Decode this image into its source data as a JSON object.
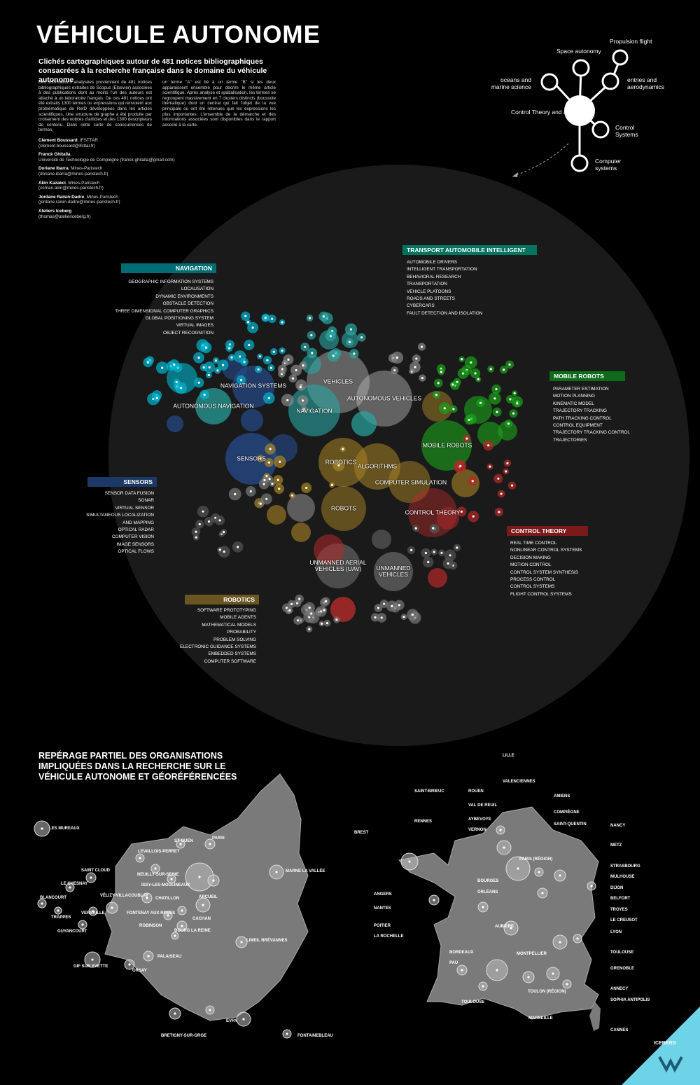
{
  "header": {
    "title": "VÉHICULE AUTONOME",
    "subtitle": "Clichés cartographiques autour de 481 notices bibliographiques consacrées à la recherche française dans le domaine du véhicule autonome",
    "intro_left": "Les informations analysées proviennent de 481 notices bibliographiques extraites de Scopus (Elsevier) associées à des publications dont au moins l'un des auteurs est attaché à un laboratoire français. De ces 481 notices ont été extraits 1300 termes ou expressions qui renvoient aux problématique de RetD développées dans les articles scientifiques. Une structure de graphe a été produite par croisement des notices d'articles et des 1300 descripteurs de contenu. Dans cette carte de cooccurrences de termes,",
    "intro_right": "un terme \"A\" est lié à un terme \"B\" si les deux apparaissent ensemble pour décrire le même article scientifique. Après analyse et spatialisation, les termes se regroupent massivement en 7 clusters distincts (boussole thématique) dont un central qui fait l'objet de la vue principale où ont été retenues que les expressions les plus importantes. L'ensemble de la démarche et des informations associées sont disponibles dans le rapport associé à la carte."
  },
  "authors": [
    {
      "name": "Clement Boussard",
      "affil": ", IFSTTAR",
      "contact": "(clement.boussard@ifsttar.fr)"
    },
    {
      "name": "Franck Ghitalla",
      "affil": ",",
      "contact": "Université de Technologie de Compiègne (franck.ghitalla@gmail.com)"
    },
    {
      "name": "Doriane Ibarra",
      "affil": ", Mines-Paristech",
      "contact": "(doriane.ibarra@mines-paristech.fr)"
    },
    {
      "name": "Akin Kazakci",
      "affil": ", Mines-Paristech",
      "contact": "(osman.akin@mines-paristech.fr)"
    },
    {
      "name": "Jordane Raisin-Dadre",
      "affil": ", Mines-Paristech",
      "contact": "(jordane.raisin-dadre@mines-paristech.fr)"
    },
    {
      "name": "Ateliers Iceberg",
      "affil": "",
      "contact": "(thomas@ateliericeberg.fr)"
    }
  ],
  "compass": {
    "center": "Control Theory and applications",
    "branches": [
      "Space autonomy",
      "Propulsion flight",
      "oceans and marine science",
      "entries and aerodynamics",
      "Control Systems",
      "Computer systems"
    ]
  },
  "clusters": {
    "navigation": {
      "name": "NAVIGATION",
      "color": "#006d75",
      "terms": [
        "GEOGRAPHIC INFORMATION SYSTEMS",
        "LOCALISATION",
        "DYNAMIC ENVIRONMENTS",
        "OBSTACLE DETECTION",
        "THREE DIMENSIONAL COMPUTER GRAPHICS",
        "GLOBAL POSITIONING SYSTEM",
        "VIRTUAL IMAGES",
        "OBJECT RECOGNITION"
      ]
    },
    "transport": {
      "name": "TRANSPORT AUTOMOBILE INTELLIGENT",
      "color": "#00745e",
      "terms": [
        "AUTOMOBILE DRIVERS",
        "INTELLIGENT TRANSPORTATION",
        "BEHAVIORAL RESEARCH",
        "TRANSPORTATION",
        "VEHICLE PLATOONS",
        "ROADS AND STREETS",
        "CYBERCARS",
        "FAULT DETECTION AND ISOLATION"
      ]
    },
    "mobile": {
      "name": "MOBILE ROBOTS",
      "color": "#0d6b1a",
      "terms": [
        "PARAMETER ESTIMATION",
        "MOTION PLANNING",
        "KINEMATIC MODEL",
        "TRAJECTORY TRACKING",
        "PATH TRACKING CONTROL",
        "CONTROL EQUIPMENT",
        "TRAJECTORY TRACKING CONTROL",
        "TRAJECTORIES"
      ]
    },
    "sensors": {
      "name": "SENSORS",
      "color": "#1c3866",
      "terms": [
        "SENSOR DATA FUSION",
        "SONAR",
        "VIRTUAL SENSOR",
        "SIMULTANEOUS LOCALIZATION",
        "AND MAPPING",
        "OPTICAL RADAR",
        "COMPUTER VISION",
        "IMAGE SENSORS",
        "OPTICAL FLOWS"
      ]
    },
    "control": {
      "name": "CONTROL THEORY",
      "color": "#7a1a1a",
      "terms": [
        "REAL TIME CONTROL",
        "NONLINEAR CONTROL SYSTEMS",
        "DECISION MAKING",
        "MOTION CONTROL",
        "CONTROL SYSTEM SYNTHESIS",
        "PROCESS CONTROL",
        "CONTROL SYSTEMS",
        "FLIGHT CONTROL SYSTEMS"
      ]
    },
    "robotics": {
      "name": "ROBOTICS",
      "color": "#6b5520",
      "terms": [
        "SOFTWARE PROTOTYPING",
        "MOBILE AGENTS",
        "MATHEMATICAL MODELS",
        "PROBABILITY",
        "PROBLEM SOLVING",
        "ELECTRONIC GUIDANCE SYSTEMS",
        "EMBEDDED SYSTEMS",
        "COMPUTER SOFTWARE"
      ]
    }
  },
  "graph_labels": [
    "NAVIGATION SYSTEMS",
    "VEHICLES",
    "AUTONOMOUS VEHICLES",
    "AUTONOMOUS NAVIGATION",
    "NAVIGATION",
    "MOBILE ROBOTS",
    "SENSORS",
    "ROBOTICS",
    "ALGORITHMS",
    "COMPUTER SIMULATION",
    "ROBOTS",
    "CONTROL THEORY",
    "UNMANNED AERIAL VEHICLES (UAV)",
    "UNMANNED VEHICLES"
  ],
  "section2": {
    "title": "REPÉRAGE PARTIEL DES ORGANISATIONS IMPLIQUÉES DANS LA RECHERCHE SUR LE VÉHICULE AUTONOME ET GÉORÉFÉRENCÉES"
  },
  "idf_places": [
    "LES MUREAUX",
    "SAINT CLOUD",
    "LE CHESNAY",
    "BLANCOURT",
    "TRAPPES",
    "GUYANCOURT",
    "GIF SUR YVETTE",
    "LEVALLOIS-PERRET",
    "ST OUEN",
    "PARIS",
    "MARNE LA VALLÉE",
    "NEUILLY-SUR-SEINE",
    "ISSY-LES-MOULINEAUX",
    "VÉLIZY-VILLACOUBLAY",
    "VERSAILLE",
    "CHATILLON",
    "ARCUEIL",
    "FONTENAY AUX ROSES",
    "CACHAN",
    "ROBINSON",
    "BOURG LA REINE",
    "LIMEIL BRÉVANNES",
    "PALAISEAU",
    "ORSAY",
    "EVRY",
    "BRETIGNY-SUR-ORGE",
    "FONTAINEBLEAU"
  ],
  "fr_places": [
    "LILLE",
    "VALENCIENNES",
    "SAINT-BRIEUC",
    "ROUEN",
    "VAL DE REUIL",
    "AMIENS",
    "COMPIÈGNE",
    "BREST",
    "RENNES",
    "AYBEVOYE",
    "VERNON",
    "SAINT-QUENTIN",
    "NANCY",
    "METZ",
    "STRASBOURG",
    "PARIS (RÉGION)",
    "BOURGES",
    "ORLÉANS",
    "MULHOUSE",
    "DIJON",
    "BELFORT",
    "ANGERS",
    "NANTES",
    "TROYES",
    "LE CREUSOT",
    "POITIER",
    "AUBIÈRE",
    "LA ROCHELLE",
    "LYON",
    "TOULOUSE",
    "GRENOBLE",
    "BORDEAUX",
    "MONTPELLIER",
    "PAU",
    "ANNECY",
    "SOPHIA ANTIPOLIS",
    "TOULON (RÉGION)",
    "MARSEILLE",
    "CANNES",
    "TOULOUSE"
  ],
  "logo": {
    "label": "ICEBERG"
  }
}
